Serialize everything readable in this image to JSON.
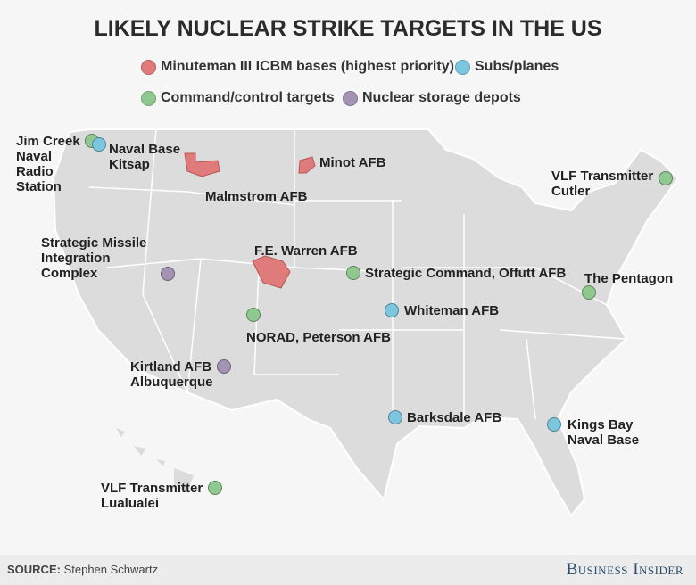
{
  "title": "LIKELY NUCLEAR STRIKE TARGETS IN THE US",
  "legend": [
    {
      "label": "Minuteman III ICBM bases (highest priority)",
      "color": "#e07b7b"
    },
    {
      "label": "Subs/planes",
      "color": "#7cc6e0"
    },
    {
      "label": "Command/control targets",
      "color": "#8fc98f"
    },
    {
      "label": "Nuclear storage depots",
      "color": "#a593b5"
    }
  ],
  "labels": {
    "jim_creek": "Jim Creek Naval Radio Station",
    "kitsap": "Naval Base Kitsap",
    "malmstrom": "Malmstrom AFB",
    "minot": "Minot AFB",
    "cutler": "VLF Transmitter Cutler",
    "smic": "Strategic Missile Integration Complex",
    "warren": "F.E. Warren AFB",
    "offutt": "Strategic Command, Offutt AFB",
    "pentagon": "The Pentagon",
    "whiteman": "Whiteman AFB",
    "norad": "NORAD, Peterson AFB",
    "kirtland": "Kirtland AFB Albuquerque",
    "barksdale": "Barksdale AFB",
    "kings_bay": "Kings Bay Naval Base",
    "lualualei": "VLF Transmitter Lualualei"
  },
  "footer": {
    "source_label": "SOURCE:",
    "source": "Stephen Schwartz",
    "brand": "Business Insider"
  },
  "colors": {
    "map": "#dcdcdc",
    "border": "#ffffff"
  }
}
